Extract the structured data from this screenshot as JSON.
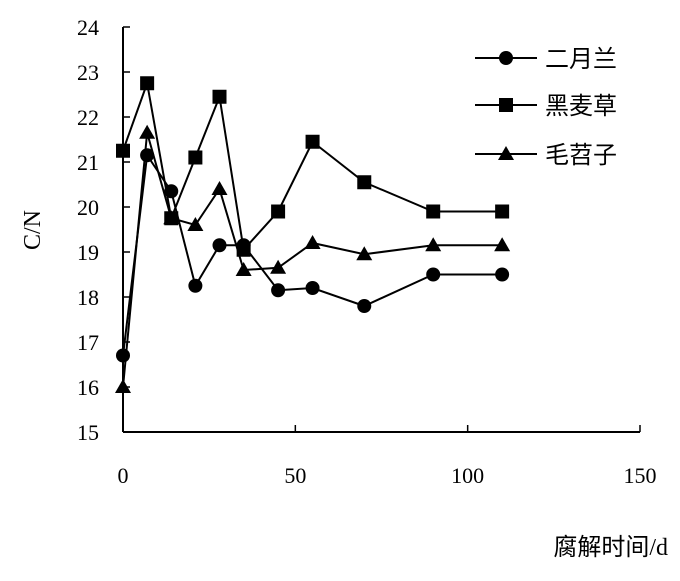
{
  "chart_data": {
    "type": "line",
    "ylabel": "C/N",
    "xlabel": "腐解时间/d",
    "xlim": [
      0,
      150
    ],
    "ylim": [
      15,
      24
    ],
    "xticks": [
      "0",
      "50",
      "100",
      "150"
    ],
    "yticks": [
      "15",
      "16",
      "17",
      "18",
      "19",
      "20",
      "21",
      "22",
      "23",
      "24"
    ],
    "grid": false,
    "legend_position": "top-right",
    "x": [
      0,
      7,
      14,
      21,
      28,
      35,
      45,
      55,
      70,
      90,
      110
    ],
    "series": [
      {
        "name": "二月兰",
        "marker": "circle",
        "values": [
          16.7,
          21.15,
          20.35,
          18.25,
          19.15,
          19.15,
          18.15,
          18.2,
          17.8,
          18.5,
          18.5
        ]
      },
      {
        "name": "黑麦草",
        "marker": "square",
        "values": [
          21.25,
          22.75,
          19.75,
          21.1,
          22.45,
          19.05,
          19.9,
          21.45,
          20.55,
          19.9,
          19.9
        ]
      },
      {
        "name": "毛苕子",
        "marker": "triangle",
        "values": [
          16.0,
          21.65,
          19.75,
          19.6,
          20.4,
          18.6,
          18.65,
          19.2,
          18.95,
          19.15,
          19.15
        ]
      }
    ]
  }
}
